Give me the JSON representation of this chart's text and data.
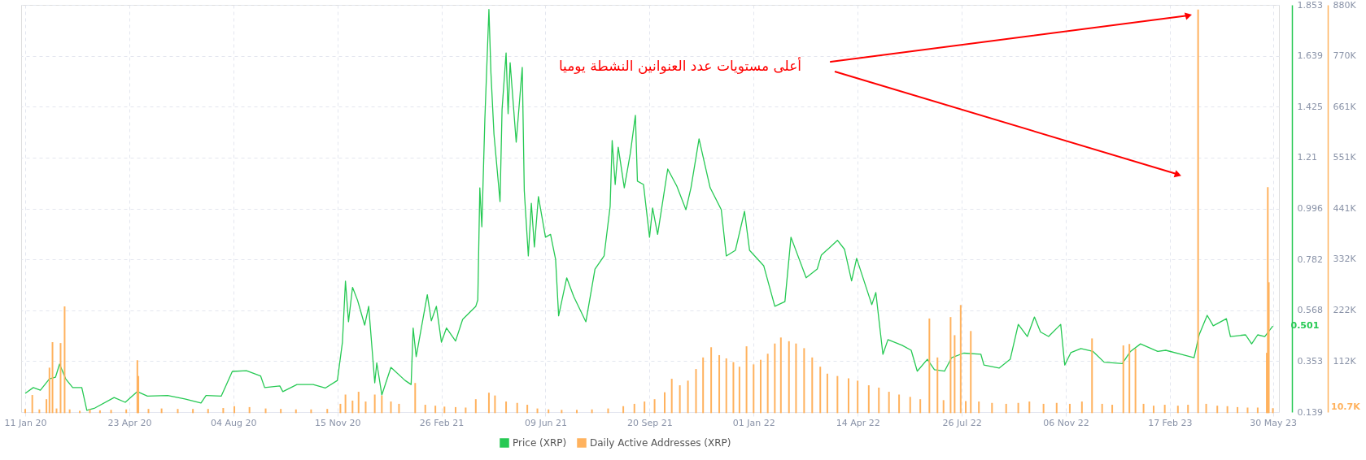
{
  "chart_data": {
    "type": "line",
    "xlim": [
      "2020-01-11",
      "2023-06-01"
    ],
    "xticks": [
      {
        "value": "2020-01-11",
        "label": "11 Jan 20"
      },
      {
        "value": "2020-04-23",
        "label": "23 Apr 20"
      },
      {
        "value": "2020-08-04",
        "label": "04 Aug 20"
      },
      {
        "value": "2020-11-15",
        "label": "15 Nov 20"
      },
      {
        "value": "2021-02-26",
        "label": "26 Feb 21"
      },
      {
        "value": "2021-06-09",
        "label": "09 Jun 21"
      },
      {
        "value": "2021-09-20",
        "label": "20 Sep 21"
      },
      {
        "value": "2022-01-01",
        "label": "01 Jan 22"
      },
      {
        "value": "2022-04-14",
        "label": "14 Apr 22"
      },
      {
        "value": "2022-07-26",
        "label": "26 Jul 22"
      },
      {
        "value": "2022-11-06",
        "label": "06 Nov 22"
      },
      {
        "value": "2023-02-17",
        "label": "17 Feb 23"
      },
      {
        "value": "2023-05-30",
        "label": "30 May 23"
      }
    ],
    "ylim": [
      0.139,
      1.853
    ],
    "yticks": [
      0.139,
      0.353,
      0.568,
      0.782,
      0.996,
      1.21,
      1.425,
      1.639,
      1.853
    ],
    "y2lim": [
      2300,
      880000
    ],
    "y2ticks": [
      {
        "value": 112000,
        "label": "112K"
      },
      {
        "value": 222000,
        "label": "222K"
      },
      {
        "value": 332000,
        "label": "332K"
      },
      {
        "value": 441000,
        "label": "441K"
      },
      {
        "value": 551000,
        "label": "551K"
      },
      {
        "value": 661000,
        "label": "661K"
      },
      {
        "value": 770000,
        "label": "770K"
      },
      {
        "value": 880000,
        "label": "880K"
      }
    ],
    "grid": true,
    "legend": "bottom",
    "annotations": [
      "أعلى مستويات عدد العنوانين النشطة يوميا",
      {
        "text": "0.501",
        "x": "2023-05-30",
        "y": 0.501
      },
      "10.7K"
    ],
    "series": [
      {
        "name": "Daily Active Addresses (XRP)",
        "type": "bar",
        "axis": "y2",
        "color": "#ffb25e",
        "x": [
          "2020-01-11",
          "2020-01-18",
          "2020-01-25",
          "2020-02-01",
          "2020-02-04",
          "2020-02-07",
          "2020-02-11",
          "2020-02-15",
          "2020-02-19",
          "2020-02-24",
          "2020-03-05",
          "2020-03-15",
          "2020-03-25",
          "2020-04-05",
          "2020-04-20",
          "2020-05-01",
          "2020-05-02",
          "2020-05-12",
          "2020-05-25",
          "2020-06-10",
          "2020-06-25",
          "2020-07-10",
          "2020-07-25",
          "2020-08-05",
          "2020-08-20",
          "2020-09-05",
          "2020-09-20",
          "2020-10-05",
          "2020-10-20",
          "2020-11-05",
          "2020-11-18",
          "2020-11-23",
          "2020-11-30",
          "2020-12-06",
          "2020-12-13",
          "2020-12-22",
          "2020-12-29",
          "2021-01-07",
          "2021-01-15",
          "2021-01-31",
          "2021-02-10",
          "2021-02-20",
          "2021-03-01",
          "2021-03-12",
          "2021-03-22",
          "2021-04-01",
          "2021-04-14",
          "2021-04-20",
          "2021-05-01",
          "2021-05-12",
          "2021-05-22",
          "2021-06-01",
          "2021-06-12",
          "2021-06-25",
          "2021-07-10",
          "2021-07-25",
          "2021-08-10",
          "2021-08-25",
          "2021-09-05",
          "2021-09-15",
          "2021-09-25",
          "2021-10-05",
          "2021-10-12",
          "2021-10-20",
          "2021-10-28",
          "2021-11-05",
          "2021-11-12",
          "2021-11-20",
          "2021-11-28",
          "2021-12-05",
          "2021-12-12",
          "2021-12-18",
          "2021-12-25",
          "2022-01-01",
          "2022-01-08",
          "2022-01-15",
          "2022-01-22",
          "2022-01-28",
          "2022-02-05",
          "2022-02-12",
          "2022-02-20",
          "2022-02-28",
          "2022-03-08",
          "2022-03-15",
          "2022-03-25",
          "2022-04-05",
          "2022-04-14",
          "2022-04-25",
          "2022-05-05",
          "2022-05-15",
          "2022-05-25",
          "2022-06-05",
          "2022-06-15",
          "2022-06-24",
          "2022-07-02",
          "2022-07-08",
          "2022-07-15",
          "2022-07-19",
          "2022-07-25",
          "2022-07-30",
          "2022-08-04",
          "2022-08-12",
          "2022-08-25",
          "2022-09-08",
          "2022-09-20",
          "2022-10-01",
          "2022-10-15",
          "2022-10-28",
          "2022-11-10",
          "2022-11-22",
          "2022-12-02",
          "2022-12-12",
          "2022-12-22",
          "2023-01-02",
          "2023-01-08",
          "2023-01-14",
          "2023-01-22",
          "2023-02-01",
          "2023-02-12",
          "2023-02-25",
          "2023-03-07",
          "2023-03-17",
          "2023-03-25",
          "2023-04-05",
          "2023-04-15",
          "2023-04-25",
          "2023-05-05",
          "2023-05-15",
          "2023-05-24",
          "2023-05-25",
          "2023-05-26",
          "2023-05-30"
        ],
        "values": [
          9000,
          39000,
          8000,
          30000,
          98000,
          153000,
          10000,
          151000,
          230000,
          8000,
          5000,
          8000,
          6000,
          7000,
          8000,
          114000,
          80000,
          9000,
          10000,
          9000,
          9000,
          9000,
          11000,
          15000,
          13000,
          10000,
          9000,
          8000,
          8000,
          9000,
          20000,
          40000,
          27000,
          46000,
          25000,
          40000,
          38000,
          25000,
          20000,
          65000,
          18000,
          16000,
          14000,
          13000,
          12000,
          30000,
          44000,
          38000,
          25000,
          22000,
          18000,
          10000,
          8000,
          7000,
          7000,
          8000,
          10000,
          15000,
          20000,
          25000,
          30000,
          45000,
          74000,
          60000,
          70000,
          95000,
          120000,
          142000,
          125000,
          118000,
          110000,
          100000,
          144000,
          105000,
          115000,
          128000,
          150000,
          163000,
          155000,
          150000,
          140000,
          120000,
          100000,
          85000,
          80000,
          75000,
          70000,
          60000,
          55000,
          46000,
          40000,
          35000,
          30000,
          204000,
          120000,
          28000,
          207000,
          168000,
          233000,
          26000,
          177000,
          25000,
          22000,
          20000,
          22000,
          25000,
          20000,
          22000,
          20000,
          25000,
          161000,
          20000,
          18000,
          146000,
          149000,
          139000,
          20000,
          16000,
          18000,
          16000,
          18000,
          870000,
          20000,
          16000,
          15000,
          13000,
          12000,
          12000,
          130000,
          487000,
          282000,
          10700
        ]
      },
      {
        "name": "Price (XRP)",
        "color": "#26c953",
        "x": [
          "2020-01-11",
          "2020-01-19",
          "2020-01-26",
          "2020-02-04",
          "2020-02-10",
          "2020-02-14",
          "2020-02-20",
          "2020-02-27",
          "2020-03-07",
          "2020-03-12",
          "2020-03-20",
          "2020-04-08",
          "2020-04-19",
          "2020-05-01",
          "2020-05-11",
          "2020-05-31",
          "2020-06-17",
          "2020-07-03",
          "2020-07-08",
          "2020-07-23",
          "2020-08-03",
          "2020-08-17",
          "2020-08-31",
          "2020-09-04",
          "2020-09-19",
          "2020-09-22",
          "2020-10-06",
          "2020-10-22",
          "2020-11-03",
          "2020-11-15",
          "2020-11-20",
          "2020-11-23",
          "2020-11-26",
          "2020-11-30",
          "2020-12-05",
          "2020-12-12",
          "2020-12-16",
          "2020-12-22",
          "2020-12-24",
          "2020-12-29",
          "2021-01-07",
          "2021-01-21",
          "2021-01-27",
          "2021-01-29",
          "2021-02-01",
          "2021-02-12",
          "2021-02-16",
          "2021-02-21",
          "2021-02-26",
          "2021-03-03",
          "2021-03-12",
          "2021-03-19",
          "2021-04-01",
          "2021-04-03",
          "2021-04-05",
          "2021-04-07",
          "2021-04-10",
          "2021-04-14",
          "2021-04-16",
          "2021-04-19",
          "2021-04-25",
          "2021-04-27",
          "2021-05-01",
          "2021-05-03",
          "2021-05-05",
          "2021-05-11",
          "2021-05-17",
          "2021-05-19",
          "2021-05-23",
          "2021-05-26",
          "2021-05-29",
          "2021-06-02",
          "2021-06-09",
          "2021-06-14",
          "2021-06-19",
          "2021-06-22",
          "2021-06-30",
          "2021-07-07",
          "2021-07-19",
          "2021-07-28",
          "2021-08-06",
          "2021-08-12",
          "2021-08-14",
          "2021-08-17",
          "2021-08-20",
          "2021-08-26",
          "2021-09-01",
          "2021-09-06",
          "2021-09-08",
          "2021-09-14",
          "2021-09-20",
          "2021-09-23",
          "2021-09-28",
          "2021-10-08",
          "2021-10-17",
          "2021-10-26",
          "2021-10-31",
          "2021-11-08",
          "2021-11-14",
          "2021-11-19",
          "2021-11-30",
          "2021-12-05",
          "2021-12-14",
          "2021-12-23",
          "2021-12-28",
          "2022-01-11",
          "2022-01-22",
          "2022-02-01",
          "2022-02-07",
          "2022-02-22",
          "2022-03-05",
          "2022-03-09",
          "2022-03-25",
          "2022-04-01",
          "2022-04-08",
          "2022-04-13",
          "2022-04-28",
          "2022-05-02",
          "2022-05-09",
          "2022-05-14",
          "2022-05-28",
          "2022-06-06",
          "2022-06-12",
          "2022-06-22",
          "2022-06-29",
          "2022-07-09",
          "2022-07-16",
          "2022-07-28",
          "2022-08-14",
          "2022-08-17",
          "2022-09-01",
          "2022-09-12",
          "2022-09-20",
          "2022-09-29",
          "2022-10-06",
          "2022-10-12",
          "2022-10-20",
          "2022-11-01",
          "2022-11-05",
          "2022-11-11",
          "2022-11-21",
          "2022-12-03",
          "2022-12-14",
          "2023-01-01",
          "2023-01-09",
          "2023-01-19",
          "2023-02-05",
          "2023-02-13",
          "2023-02-28",
          "2023-03-13",
          "2023-03-18",
          "2023-03-26",
          "2023-04-01",
          "2023-04-14",
          "2023-04-18",
          "2023-05-03",
          "2023-05-09",
          "2023-05-15",
          "2023-05-22",
          "2023-05-30"
        ],
        "values": [
          0.218,
          0.242,
          0.231,
          0.279,
          0.286,
          0.341,
          0.279,
          0.242,
          0.242,
          0.146,
          0.156,
          0.2,
          0.18,
          0.225,
          0.206,
          0.209,
          0.194,
          0.177,
          0.209,
          0.206,
          0.31,
          0.313,
          0.291,
          0.242,
          0.249,
          0.225,
          0.255,
          0.255,
          0.24,
          0.272,
          0.433,
          0.69,
          0.519,
          0.664,
          0.609,
          0.505,
          0.584,
          0.262,
          0.346,
          0.211,
          0.327,
          0.272,
          0.255,
          0.493,
          0.372,
          0.633,
          0.523,
          0.584,
          0.433,
          0.493,
          0.438,
          0.529,
          0.584,
          0.611,
          1.083,
          0.919,
          1.374,
          1.834,
          1.566,
          1.309,
          1.025,
          1.412,
          1.651,
          1.395,
          1.61,
          1.275,
          1.59,
          1.071,
          0.796,
          1.018,
          0.834,
          1.046,
          0.875,
          0.887,
          0.782,
          0.544,
          0.704,
          0.625,
          0.519,
          0.741,
          0.796,
          1.005,
          1.282,
          1.097,
          1.254,
          1.083,
          1.229,
          1.388,
          1.111,
          1.097,
          0.875,
          0.998,
          0.887,
          1.162,
          1.09,
          0.991,
          1.083,
          1.289,
          1.176,
          1.083,
          0.991,
          0.796,
          0.82,
          0.984,
          0.82,
          0.755,
          0.584,
          0.604,
          0.875,
          0.704,
          0.741,
          0.799,
          0.862,
          0.824,
          0.691,
          0.786,
          0.591,
          0.642,
          0.382,
          0.444,
          0.42,
          0.399,
          0.311,
          0.361,
          0.317,
          0.311,
          0.368,
          0.387,
          0.382,
          0.337,
          0.324,
          0.361,
          0.508,
          0.457,
          0.539,
          0.476,
          0.457,
          0.508,
          0.337,
          0.389,
          0.406,
          0.394,
          0.349,
          0.343,
          0.394,
          0.426,
          0.394,
          0.399,
          0.382,
          0.368,
          0.464,
          0.546,
          0.502,
          0.532,
          0.457,
          0.464,
          0.426,
          0.464,
          0.457,
          0.501
        ]
      }
    ]
  }
}
